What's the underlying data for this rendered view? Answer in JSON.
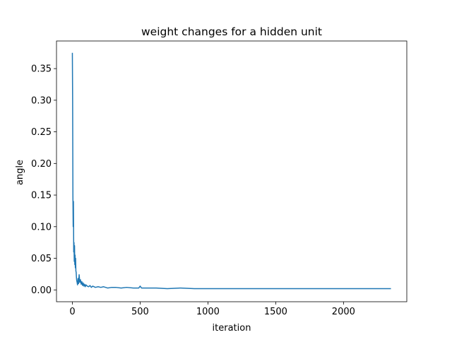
{
  "chart_data": {
    "type": "line",
    "title": "weight changes for a hidden unit",
    "xlabel": "iteration",
    "ylabel": "angle",
    "xlim": [
      -117,
      2467
    ],
    "ylim": [
      -0.0187,
      0.3937
    ],
    "xticks": [
      0,
      500,
      1000,
      1500,
      2000
    ],
    "xtick_labels": [
      "0",
      "500",
      "1000",
      "1500",
      "2000"
    ],
    "yticks": [
      0.0,
      0.05,
      0.1,
      0.15,
      0.2,
      0.25,
      0.3,
      0.35
    ],
    "ytick_labels": [
      "0.00",
      "0.05",
      "0.10",
      "0.15",
      "0.20",
      "0.25",
      "0.30",
      "0.35"
    ],
    "grid": false,
    "legend": "none",
    "series": [
      {
        "color": "#1f77b4",
        "x": [
          0,
          2,
          4,
          6,
          8,
          10,
          12,
          14,
          16,
          18,
          20,
          22,
          24,
          26,
          28,
          30,
          32,
          35,
          38,
          42,
          46,
          50,
          55,
          60,
          65,
          70,
          75,
          80,
          85,
          90,
          95,
          100,
          110,
          120,
          130,
          140,
          150,
          170,
          190,
          210,
          230,
          260,
          290,
          320,
          360,
          400,
          450,
          490,
          500,
          510,
          560,
          620,
          700,
          800,
          900,
          1000,
          1100,
          1200,
          1300,
          1400,
          1500,
          1600,
          1700,
          1800,
          1900,
          2000,
          2100,
          2200,
          2300,
          2350
        ],
        "y": [
          0.375,
          0.3,
          0.15,
          0.1,
          0.14,
          0.06,
          0.075,
          0.045,
          0.07,
          0.04,
          0.055,
          0.035,
          0.05,
          0.03,
          0.028,
          0.02,
          0.015,
          0.012,
          0.008,
          0.018,
          0.01,
          0.024,
          0.012,
          0.016,
          0.009,
          0.013,
          0.007,
          0.011,
          0.006,
          0.009,
          0.005,
          0.008,
          0.006,
          0.005,
          0.007,
          0.004,
          0.006,
          0.004,
          0.005,
          0.004,
          0.005,
          0.003,
          0.004,
          0.004,
          0.003,
          0.004,
          0.003,
          0.003,
          0.006,
          0.003,
          0.003,
          0.003,
          0.002,
          0.003,
          0.002,
          0.002,
          0.002,
          0.002,
          0.002,
          0.002,
          0.002,
          0.002,
          0.002,
          0.002,
          0.002,
          0.002,
          0.002,
          0.002,
          0.002,
          0.002
        ]
      }
    ]
  }
}
